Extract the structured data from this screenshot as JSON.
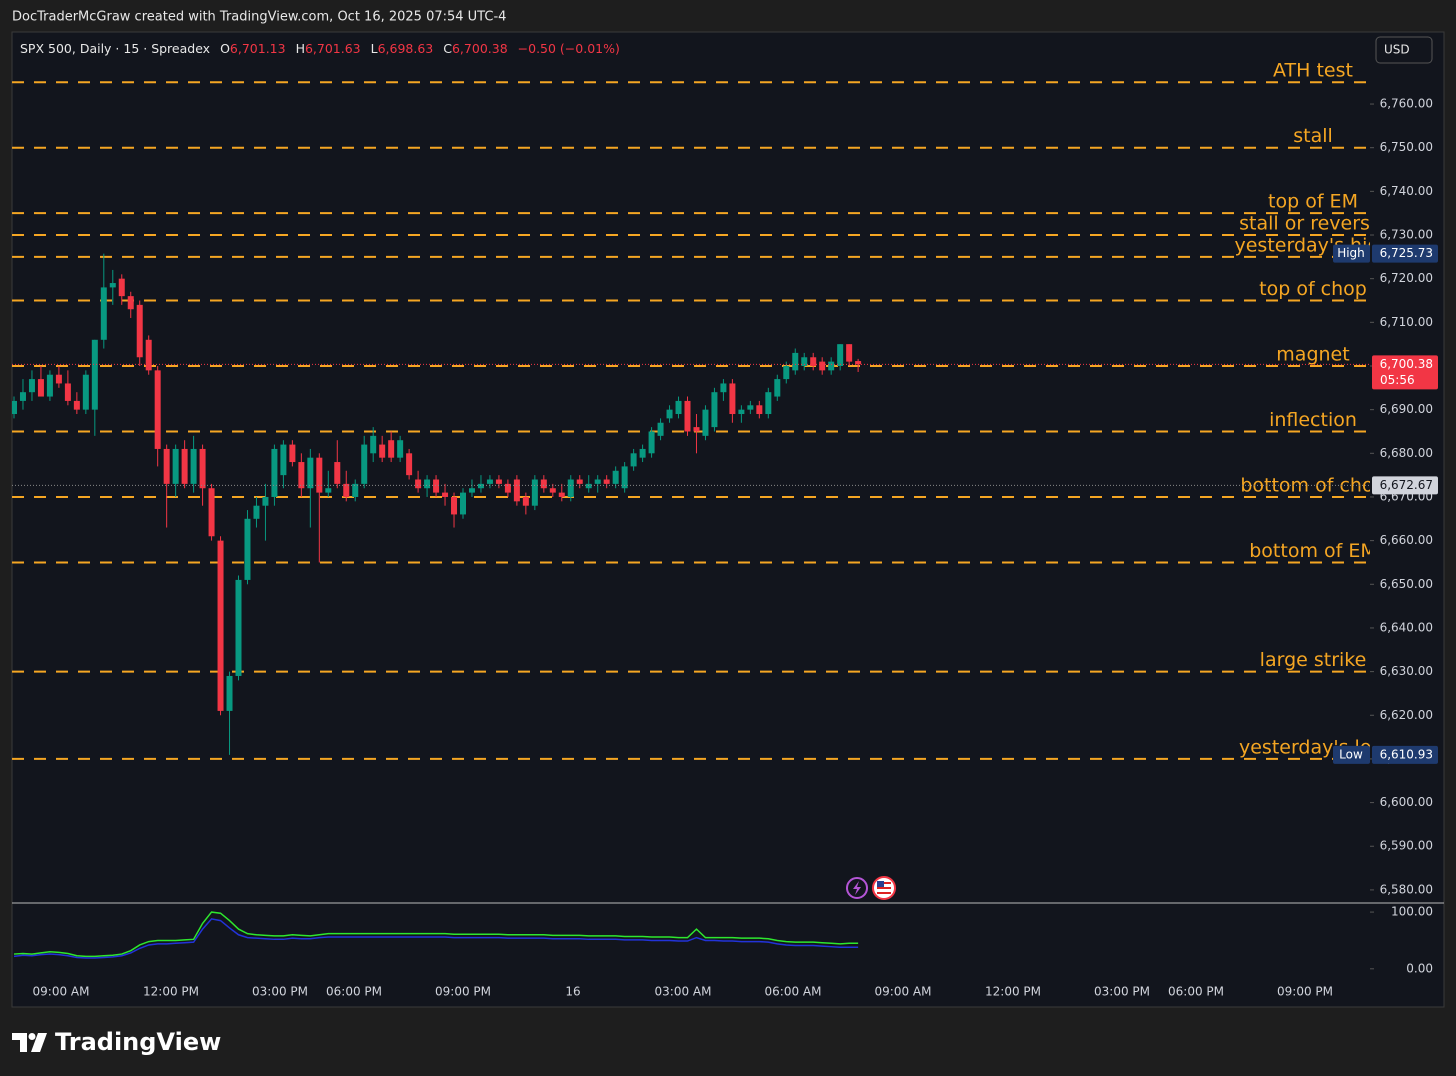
{
  "header": {
    "credit": "DocTraderMcGraw created with TradingView.com, Oct 16, 2025 07:54 UTC-4"
  },
  "legend": {
    "symbol": "SPX 500, Daily · 15 · Spreadex",
    "o_tag": "O",
    "o": "6,701.13",
    "h_tag": "H",
    "h": "6,701.63",
    "l_tag": "L",
    "l": "6,698.63",
    "c_tag": "C",
    "c": "6,700.38",
    "change": "−0.50 (−0.01%)"
  },
  "currency": "USD",
  "footer": {
    "brand": "TradingView"
  },
  "chart_data": {
    "type": "candlestick",
    "up_color": "#089981",
    "down_color": "#f23645",
    "open": [
      6689,
      6692,
      6694,
      6697,
      6693,
      6698,
      6696,
      6692,
      6690,
      6690,
      6706,
      6718,
      6720,
      6716,
      6714,
      6706,
      6699,
      6681,
      6673,
      6681,
      6673,
      6681,
      6672,
      6660,
      6621,
      6629,
      6651,
      6665,
      6668,
      6670,
      6675,
      6682,
      6678,
      6672,
      6679,
      6671,
      6678,
      6673,
      6670,
      6673,
      6680,
      6682,
      6683,
      6679,
      6680,
      6674,
      6672,
      6674,
      6671,
      6670,
      6666,
      6671,
      6672,
      6673,
      6674,
      6673,
      6674,
      6670,
      6668,
      6674,
      6672,
      6671,
      6670,
      6674,
      6672,
      6673,
      6674,
      6673,
      6672,
      6677,
      6679,
      6680,
      6684,
      6688,
      6689,
      6692,
      6686,
      6684,
      6686,
      6694,
      6696,
      6689,
      6690,
      6691,
      6689,
      6693,
      6697,
      6699,
      6700,
      6702,
      6701,
      6699,
      6700,
      6705,
      6701.13
    ],
    "high": [
      6693,
      6697,
      6699,
      6700,
      6699,
      6700,
      6699,
      6694,
      6699,
      6706,
      6725.73,
      6722,
      6721,
      6717,
      6715,
      6707,
      6700,
      6682,
      6682,
      6683,
      6684,
      6682,
      6673,
      6661,
      6630,
      6652,
      6667,
      6670,
      6673,
      6682,
      6683,
      6683,
      6680,
      6681,
      6680,
      6676,
      6683,
      6676,
      6674,
      6684,
      6686,
      6684,
      6685,
      6684,
      6681,
      6676,
      6675,
      6675,
      6673,
      6671,
      6672,
      6674,
      6675,
      6675,
      6675,
      6674,
      6675,
      6671,
      6675,
      6675,
      6673,
      6673,
      6675,
      6675,
      6675,
      6675,
      6675,
      6677,
      6678,
      6681,
      6682,
      6686,
      6688,
      6691,
      6693,
      6693,
      6689,
      6691,
      6695,
      6697,
      6697,
      6691,
      6692,
      6692,
      6695,
      6698,
      6701,
      6704,
      6703,
      6703,
      6702,
      6702,
      6705,
      6705,
      6701.63
    ],
    "low": [
      6688,
      6690,
      6692,
      6694,
      6692,
      6695,
      6691,
      6689,
      6689,
      6684,
      6704,
      6714,
      6714,
      6711,
      6700,
      6698,
      6677,
      6663,
      6670,
      6672,
      6671,
      6668,
      6660,
      6620,
      6610.93,
      6628,
      6650,
      6663,
      6660,
      6668,
      6672,
      6677,
      6670,
      6663,
      6655,
      6670,
      6672,
      6669,
      6669,
      6672,
      6678,
      6678,
      6678,
      6678,
      6674,
      6671,
      6670,
      6670,
      6668,
      6663,
      6665,
      6670,
      6671,
      6672,
      6672,
      6670,
      6668,
      6666,
      6667,
      6671,
      6670,
      6669,
      6669,
      6672,
      6671,
      6671,
      6672,
      6672,
      6671,
      6676,
      6678,
      6679,
      6683,
      6687,
      6688,
      6684,
      6680,
      6683,
      6685,
      6692,
      6687,
      6687,
      6689,
      6688,
      6688,
      6692,
      6696,
      6698,
      6699,
      6699,
      6698,
      6698,
      6699,
      6700,
      6698.63
    ],
    "close": [
      6692,
      6694,
      6697,
      6693,
      6698,
      6696,
      6692,
      6690,
      6698,
      6706,
      6718,
      6719,
      6716,
      6713,
      6702,
      6699,
      6681,
      6673,
      6681,
      6673,
      6681,
      6672,
      6661,
      6621,
      6629,
      6651,
      6665,
      6668,
      6670,
      6681,
      6682,
      6678,
      6672,
      6679,
      6671,
      6672,
      6673,
      6670,
      6673,
      6682,
      6684,
      6679,
      6679,
      6683,
      6675,
      6672,
      6674,
      6671,
      6670,
      6666,
      6671,
      6672,
      6673,
      6674,
      6673,
      6671,
      6669,
      6668,
      6674,
      6672,
      6671,
      6670,
      6674,
      6673,
      6673,
      6674,
      6673,
      6676,
      6677,
      6680,
      6681,
      6685,
      6687,
      6690,
      6692,
      6685,
      6685,
      6690,
      6694,
      6696,
      6689,
      6690,
      6691,
      6689,
      6694,
      6697,
      6700,
      6703,
      6702,
      6700,
      6699,
      6701,
      6705,
      6701,
      6700.38
    ],
    "ylim": [
      6577,
      6776.5
    ],
    "yticks": [
      {
        "value": 6580,
        "label": "6,580.00"
      },
      {
        "value": 6590,
        "label": "6,590.00"
      },
      {
        "value": 6600,
        "label": "6,600.00"
      },
      {
        "value": 6610,
        "label": "6,610.00"
      },
      {
        "value": 6620,
        "label": "6,620.00"
      },
      {
        "value": 6630,
        "label": "6,630.00"
      },
      {
        "value": 6640,
        "label": "6,640.00"
      },
      {
        "value": 6650,
        "label": "6,650.00"
      },
      {
        "value": 6660,
        "label": "6,660.00"
      },
      {
        "value": 6670,
        "label": "6,670.00"
      },
      {
        "value": 6680,
        "label": "6,680.00"
      },
      {
        "value": 6690,
        "label": "6,690.00"
      },
      {
        "value": 6700,
        "label": "6,700.00"
      },
      {
        "value": 6710,
        "label": "6,710.00"
      },
      {
        "value": 6720,
        "label": "6,720.00"
      },
      {
        "value": 6730,
        "label": "6,730.00"
      },
      {
        "value": 6740,
        "label": "6,740.00"
      },
      {
        "value": 6750,
        "label": "6,750.00"
      },
      {
        "value": 6760,
        "label": "6,760.00"
      }
    ],
    "time_labels": [
      "09:00 AM",
      "12:00 PM",
      "03:00 PM",
      "06:00 PM",
      "09:00 PM",
      "16",
      "03:00 AM",
      "06:00 AM",
      "09:00 AM",
      "12:00 PM",
      "03:00 PM",
      "06:00 PM",
      "09:00 PM"
    ],
    "level_color": "#f5a623",
    "levels": [
      {
        "label": "ATH test",
        "value": 6765
      },
      {
        "label": "stall",
        "value": 6750
      },
      {
        "label": "top of EM",
        "value": 6735
      },
      {
        "label": "stall or reversal",
        "value": 6730
      },
      {
        "label": "yesterday's high",
        "value": 6725
      },
      {
        "label": "top of chop",
        "value": 6715
      },
      {
        "label": "magnet",
        "value": 6700
      },
      {
        "label": "inflection",
        "value": 6685
      },
      {
        "label": "bottom of chop",
        "value": 6670
      },
      {
        "label": "bottom of EM",
        "value": 6655
      },
      {
        "label": "large strike",
        "value": 6630
      },
      {
        "label": "yesterday's low",
        "value": 6610
      }
    ],
    "markers": [
      {
        "tag": "High",
        "value": 6725.73,
        "label": "6,725.73",
        "color": "#1e3a6e"
      },
      {
        "tag": "Low",
        "value": 6610.93,
        "label": "6,610.93",
        "color": "#1e3a6e"
      },
      {
        "value": 6700.38,
        "label": "6,700.38",
        "countdown": "05:56",
        "color": "#f23645"
      },
      {
        "value": 6672.67,
        "label": "6,672.67",
        "color": "#d1d4dc"
      }
    ],
    "indicator": {
      "type": "line",
      "ylim": [
        -25,
        116
      ],
      "yticks": [
        {
          "value": 100,
          "label": "100.00"
        },
        {
          "value": 0,
          "label": "0.00"
        }
      ],
      "series": [
        {
          "color": "#2ee62e",
          "values": [
            26,
            27,
            26,
            28,
            30,
            29,
            27,
            23,
            22,
            22,
            23,
            24,
            26,
            32,
            42,
            48,
            50,
            50,
            50,
            51,
            52,
            80,
            100,
            98,
            85,
            70,
            62,
            60,
            59,
            58,
            58,
            60,
            59,
            58,
            60,
            62,
            62,
            62,
            62,
            62,
            62,
            62,
            62,
            62,
            62,
            62,
            62,
            62,
            62,
            61,
            61,
            61,
            61,
            61,
            61,
            60,
            60,
            60,
            60,
            60,
            59,
            59,
            59,
            59,
            58,
            58,
            58,
            58,
            57,
            57,
            57,
            56,
            56,
            56,
            55,
            55,
            70,
            55,
            55,
            55,
            55,
            54,
            54,
            54,
            53,
            50,
            48,
            47,
            47,
            47,
            46,
            45,
            44,
            45,
            45
          ]
        },
        {
          "color": "#2233d9",
          "values": [
            22,
            24,
            23,
            25,
            26,
            25,
            23,
            20,
            19,
            19,
            20,
            21,
            23,
            28,
            36,
            42,
            44,
            44,
            45,
            46,
            47,
            70,
            88,
            85,
            72,
            60,
            55,
            54,
            53,
            52,
            52,
            54,
            53,
            53,
            55,
            56,
            56,
            56,
            56,
            56,
            56,
            56,
            56,
            56,
            56,
            56,
            56,
            56,
            56,
            55,
            55,
            55,
            55,
            55,
            55,
            54,
            54,
            54,
            54,
            54,
            53,
            53,
            53,
            53,
            52,
            52,
            52,
            52,
            51,
            51,
            51,
            50,
            50,
            50,
            49,
            49,
            55,
            50,
            50,
            49,
            49,
            48,
            48,
            48,
            47,
            44,
            42,
            41,
            41,
            41,
            40,
            39,
            38,
            38,
            38
          ]
        }
      ]
    }
  }
}
